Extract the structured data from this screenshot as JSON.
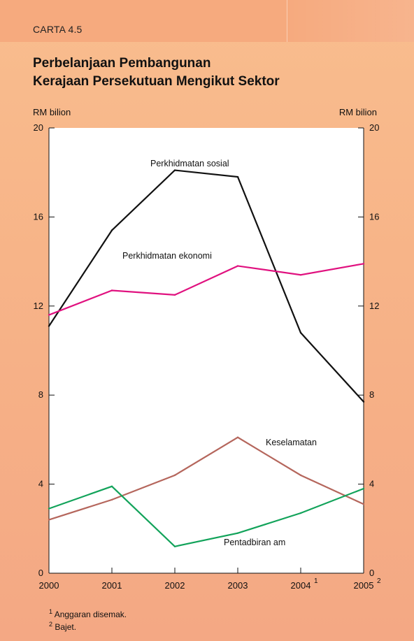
{
  "header": {
    "label": "CARTA 4.5",
    "title_line1": "Perbelanjaan Pembangunan",
    "title_line2": "Kerajaan Persekutuan Mengikut Sektor"
  },
  "colors": {
    "background": "#f7b488",
    "plot_bg": "#ffffff",
    "social": "#111111",
    "economic": "#e0117f",
    "security": "#b5665c",
    "general_admin": "#12a35a"
  },
  "chart_data": {
    "type": "line",
    "x": [
      "2000",
      "2001",
      "2002",
      "2003",
      "2004",
      "2005"
    ],
    "x_superscripts": [
      "",
      "",
      "",
      "",
      "1",
      "2"
    ],
    "ylabel_left": "RM bilion",
    "ylabel_right": "RM bilion",
    "ylim": [
      0,
      20
    ],
    "yticks": [
      0,
      4,
      8,
      12,
      16,
      20
    ],
    "grid": false,
    "series": [
      {
        "name": "Perkhidmatan sosial",
        "color_key": "social",
        "values": [
          11.1,
          15.4,
          18.1,
          17.8,
          10.8,
          7.7
        ]
      },
      {
        "name": "Perkhidmatan ekonomi",
        "color_key": "economic",
        "values": [
          11.6,
          12.7,
          12.5,
          13.8,
          13.4,
          13.9
        ]
      },
      {
        "name": "Keselamatan",
        "color_key": "security",
        "values": [
          2.4,
          3.3,
          4.4,
          6.1,
          4.4,
          3.1
        ]
      },
      {
        "name": "Pentadbiran am",
        "color_key": "general_admin",
        "values": [
          2.9,
          3.9,
          1.2,
          1.8,
          2.7,
          3.8
        ]
      }
    ],
    "series_label_anchor": [
      {
        "x": "2002.2",
        "y": 18.6
      },
      {
        "x": "2001.5",
        "y": 14.0
      },
      {
        "x": "2003.8",
        "y": 5.8
      },
      {
        "x": "2003.2",
        "y": 1.4
      }
    ]
  },
  "footnotes": [
    {
      "mark": "1",
      "text": "Anggaran disemak."
    },
    {
      "mark": "2",
      "text": "Bajet."
    }
  ]
}
